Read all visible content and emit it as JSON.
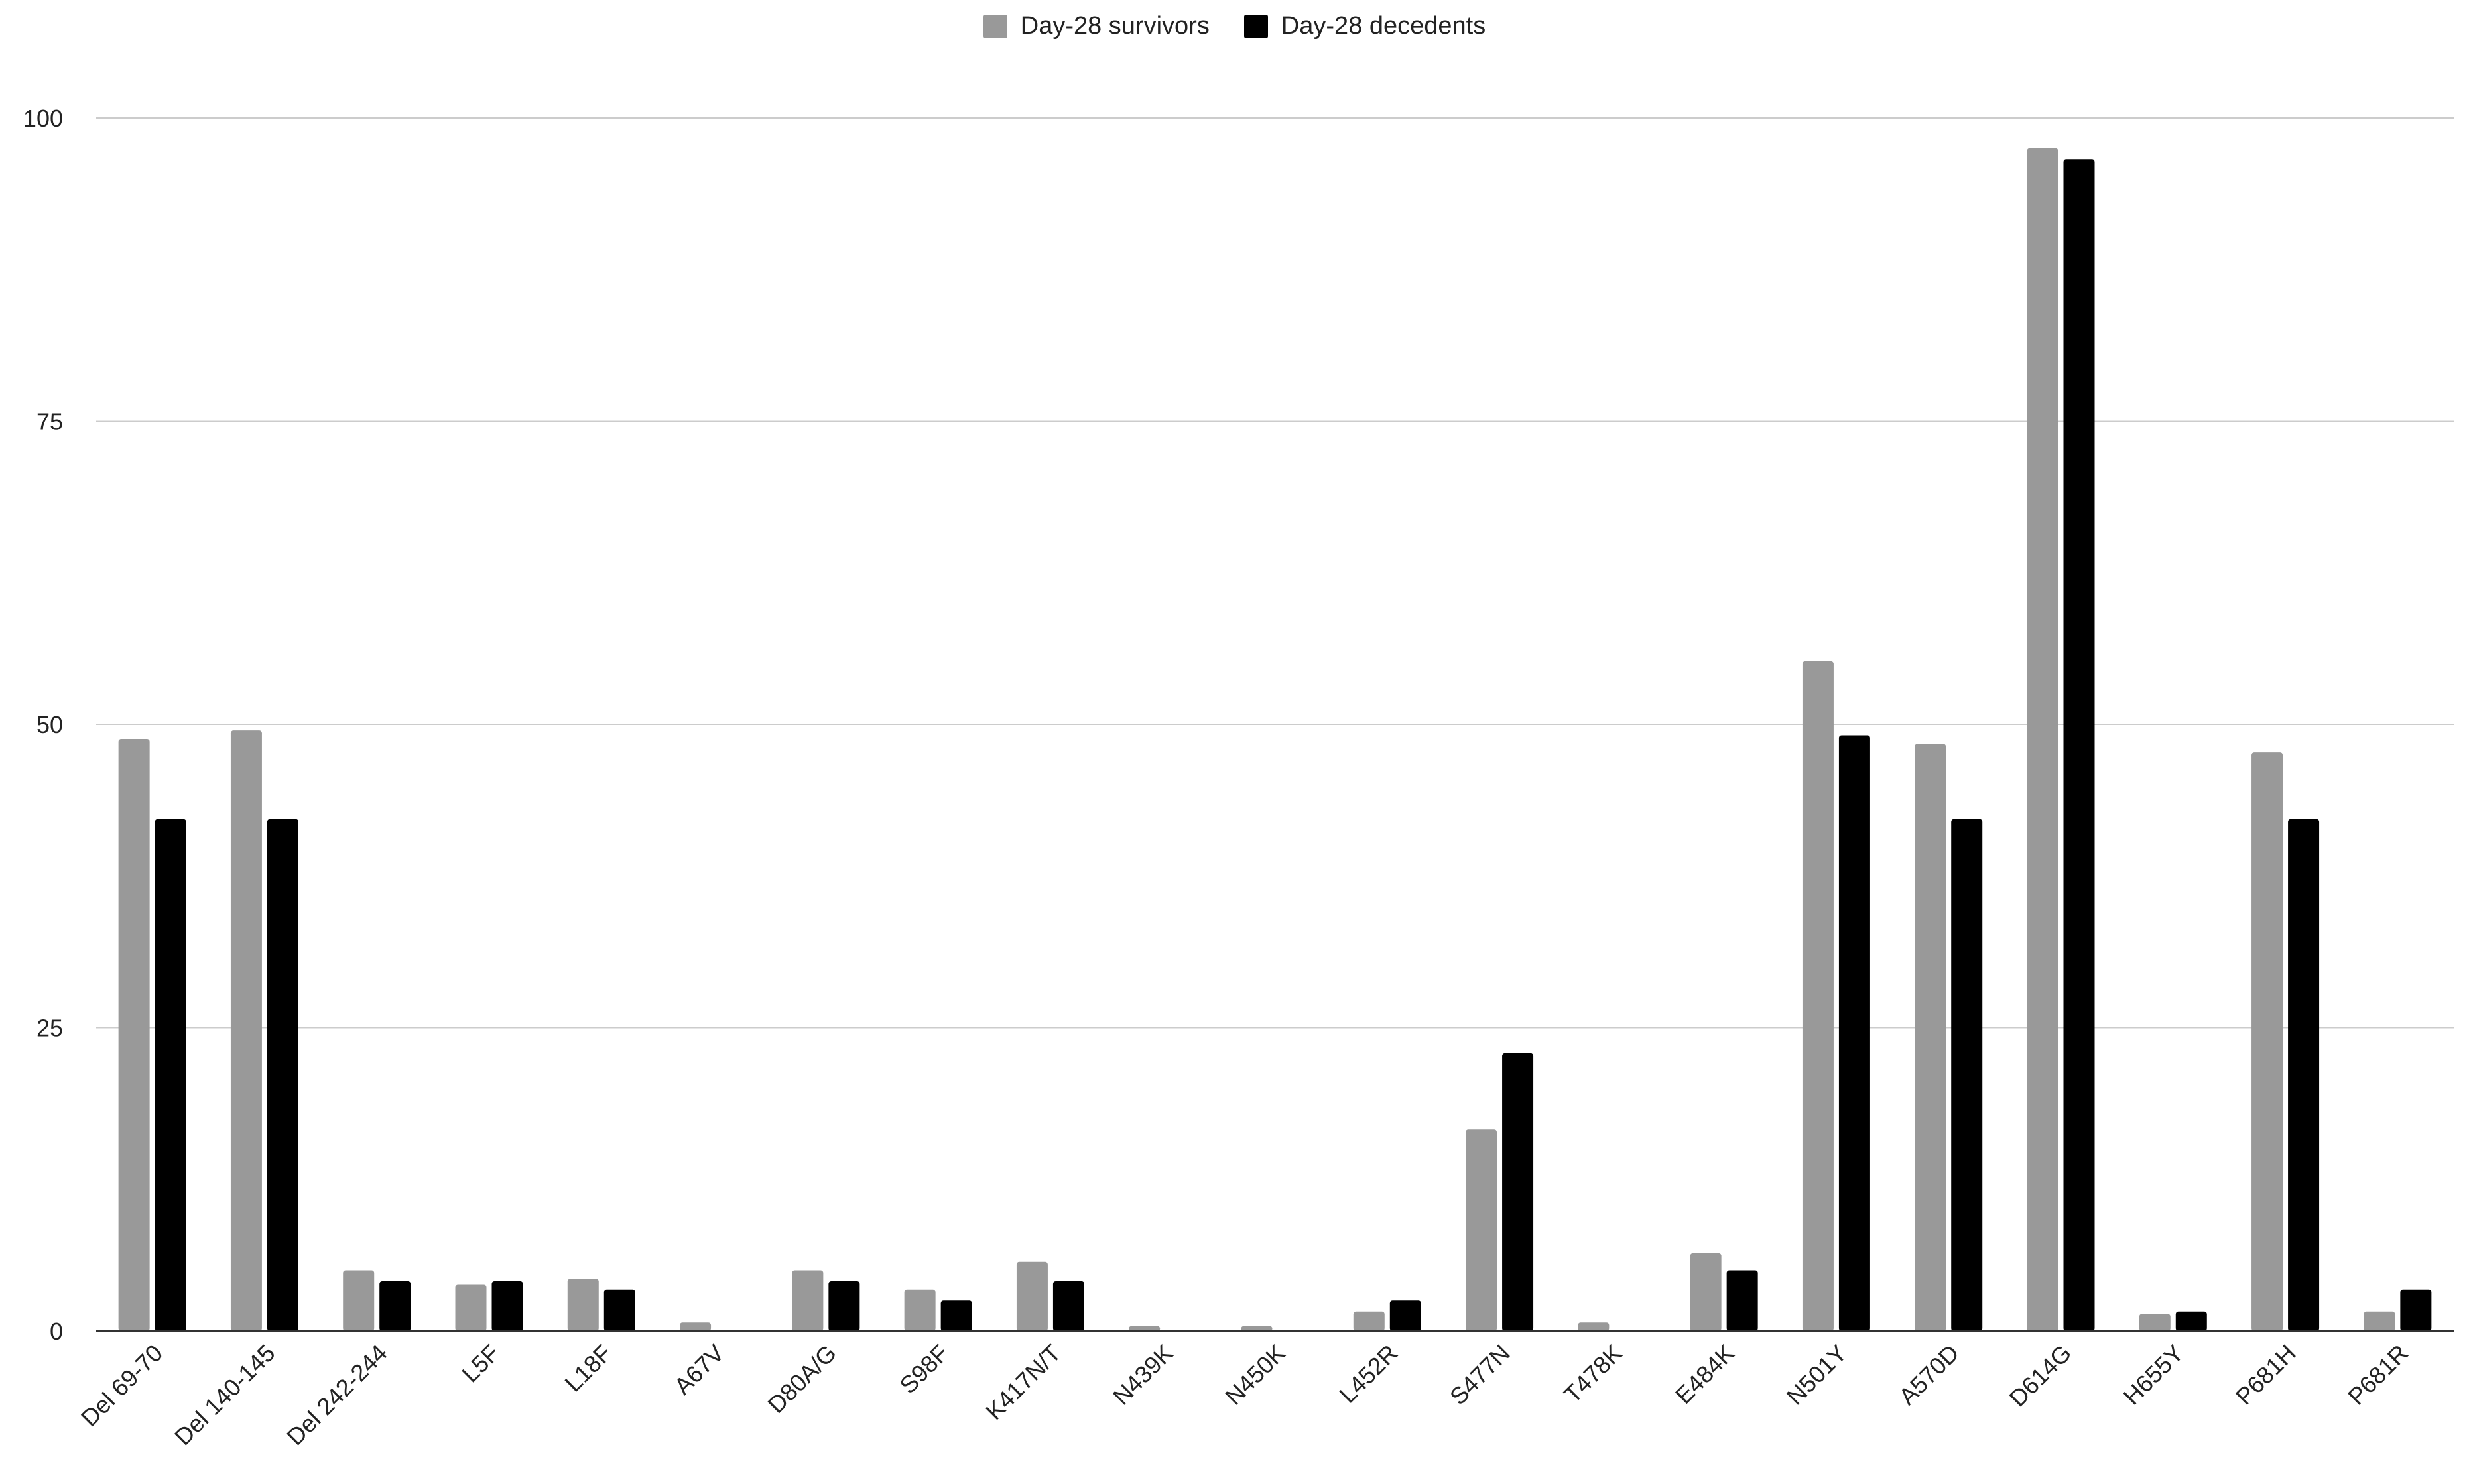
{
  "chart_data": {
    "type": "bar",
    "title": "",
    "xlabel": "",
    "ylabel": "",
    "ylim": [
      0,
      100
    ],
    "yticks": [
      0,
      25,
      50,
      75,
      100
    ],
    "grid": true,
    "legend_position": "top-center",
    "categories": [
      "Del 69-70",
      "Del 140-145",
      "Del 242-244",
      "L5F",
      "L18F",
      "A67V",
      "D80A/G",
      "S98F",
      "K417N/T",
      "N439K",
      "N450K",
      "L452R",
      "S477N",
      "T478K",
      "E484K",
      "N501Y",
      "A570D",
      "D614G",
      "H655Y",
      "P681H",
      "P681R"
    ],
    "series": [
      {
        "name": "Day-28 survivors",
        "color": "#999999",
        "values": [
          48.8,
          49.5,
          5.0,
          3.8,
          4.3,
          0.7,
          5.0,
          3.4,
          5.7,
          0.4,
          0.4,
          1.6,
          16.6,
          0.7,
          6.4,
          55.2,
          48.4,
          97.5,
          1.4,
          47.7,
          1.6
        ]
      },
      {
        "name": "Day-28 decedents",
        "color": "#000000",
        "values": [
          42.2,
          42.2,
          4.1,
          4.1,
          3.4,
          0,
          4.1,
          2.5,
          4.1,
          0,
          0,
          2.5,
          22.9,
          0,
          5.0,
          49.1,
          42.2,
          96.6,
          1.6,
          42.2,
          3.4
        ]
      }
    ]
  }
}
